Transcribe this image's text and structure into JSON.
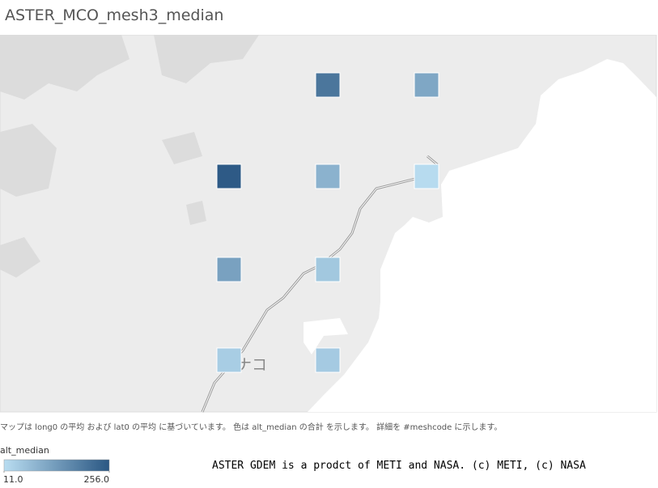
{
  "title": "ASTER_MCO_mesh3_median",
  "map_label": "ナコ",
  "caption": "マップは long0 の平均 および lat0 の平均 に基づいています。 色は alt_median の合計 を示します。 詳細を #meshcode に示します。",
  "legend": {
    "title": "alt_median",
    "min": {
      "value": 11,
      "label": "11.0"
    },
    "max": {
      "value": 256,
      "label": "256.0"
    },
    "color_low": "#b9ddf1",
    "color_high": "#2a5783"
  },
  "cells": [
    200,
    110,
    250,
    90,
    15,
    120,
    50,
    40,
    45
  ],
  "attribution": "ASTER GDEM is a prodct of METI and NASA. (c) METI, (c) NASA"
}
